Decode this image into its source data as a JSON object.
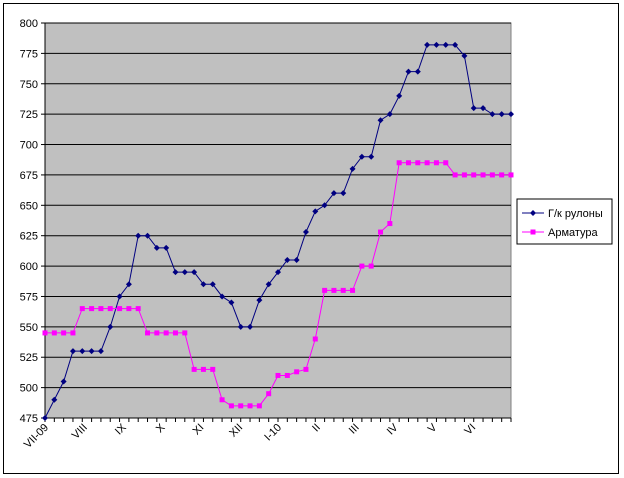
{
  "chart_data": {
    "type": "line",
    "ylim": [
      475,
      800
    ],
    "yticks": [
      475,
      500,
      525,
      550,
      575,
      600,
      625,
      650,
      675,
      700,
      725,
      750,
      775,
      800
    ],
    "x_tick_labels": [
      "VII-09",
      "VIII",
      "IX",
      "X",
      "XI",
      "XII",
      "I-10",
      "II",
      "III",
      "IV",
      "V",
      "VI"
    ],
    "grid": true,
    "legend_position": "right",
    "colors": {
      "plot_bg": "#c0c0c0",
      "series1": "#000080",
      "series2": "#ff00ff"
    },
    "series": [
      {
        "name": "Г/к рулоны",
        "marker": "diamond",
        "values": [
          475,
          490,
          505,
          530,
          530,
          530,
          530,
          550,
          575,
          585,
          625,
          625,
          615,
          615,
          595,
          595,
          595,
          585,
          585,
          575,
          570,
          550,
          550,
          572,
          585,
          595,
          605,
          605,
          628,
          645,
          650,
          660,
          660,
          680,
          690,
          690,
          720,
          725,
          740,
          760,
          760,
          782,
          782,
          782,
          782,
          773,
          730,
          730,
          725,
          725,
          725
        ]
      },
      {
        "name": "Арматура",
        "marker": "square",
        "values": [
          545,
          545,
          545,
          545,
          565,
          565,
          565,
          565,
          565,
          565,
          565,
          545,
          545,
          545,
          545,
          545,
          515,
          515,
          515,
          490,
          485,
          485,
          485,
          485,
          495,
          510,
          510,
          513,
          515,
          540,
          580,
          580,
          580,
          580,
          600,
          600,
          628,
          635,
          685,
          685,
          685,
          685,
          685,
          685,
          675,
          675,
          675,
          675,
          675,
          675,
          675
        ]
      }
    ]
  }
}
